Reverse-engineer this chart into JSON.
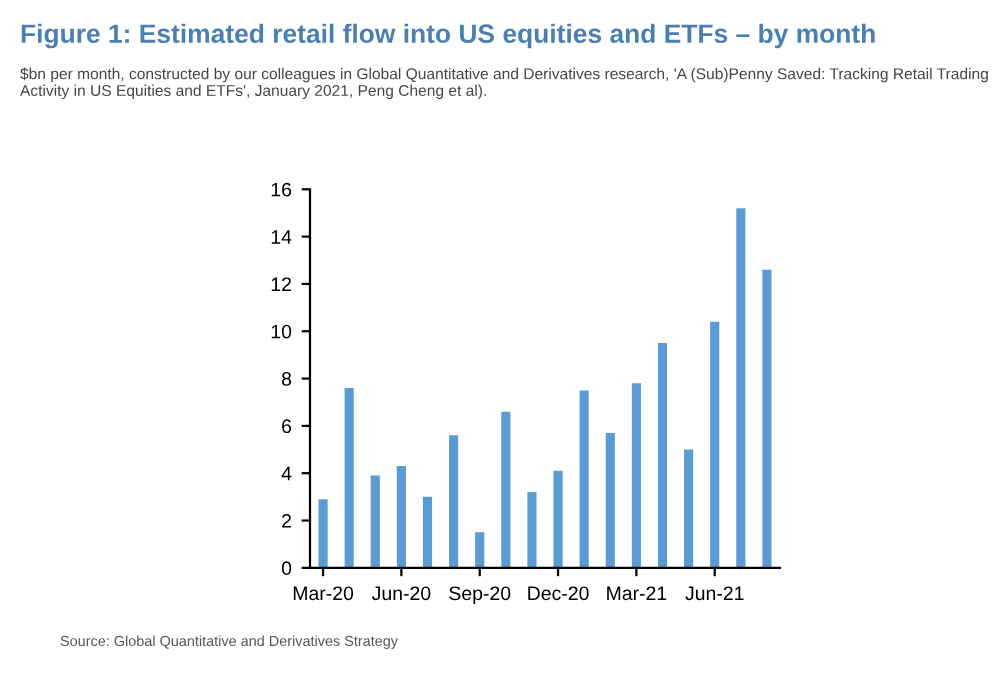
{
  "chart_data": {
    "type": "bar",
    "title": "Figure 1: Estimated retail flow into US equities and ETFs – by month",
    "subtitle": "$bn per month, constructed by our colleagues in Global Quantitative and Derivatives research, 'A (Sub)Penny Saved: Tracking Retail Trading Activity in US Equities and ETFs', January 2021, Peng Cheng et al).",
    "categories": [
      "Mar-20",
      null,
      null,
      "Jun-20",
      null,
      null,
      "Sep-20",
      null,
      null,
      "Dec-20",
      null,
      null,
      "Mar-21",
      null,
      null,
      "Jun-21",
      null,
      null
    ],
    "values": [
      2.9,
      7.6,
      3.9,
      4.3,
      3.0,
      5.6,
      1.5,
      6.6,
      3.2,
      4.1,
      7.5,
      5.7,
      7.8,
      9.5,
      5.0,
      10.4,
      15.2,
      12.6
    ],
    "color": "#5b9bd5",
    "ylim": [
      0,
      16
    ],
    "yticks": [
      0,
      2,
      4,
      6,
      8,
      10,
      12,
      14,
      16
    ],
    "annotations": [
      "Source: Global Quantitative and Derivatives Strategy"
    ]
  }
}
